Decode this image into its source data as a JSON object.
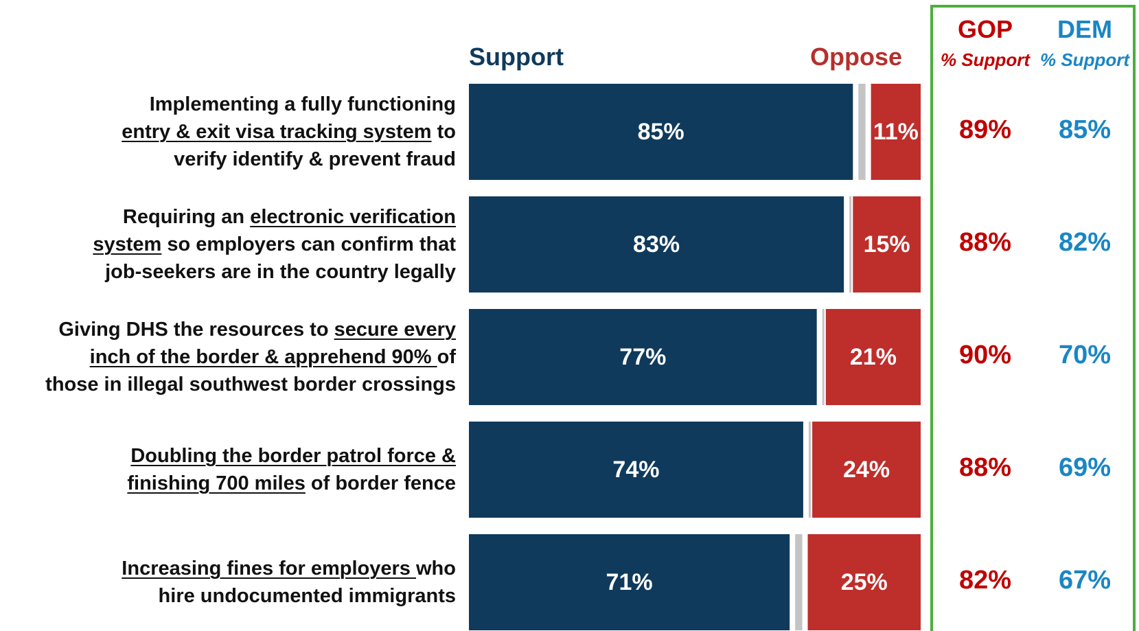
{
  "headers": {
    "support": "Support",
    "oppose": "Oppose"
  },
  "party": {
    "gop_label": "GOP",
    "dem_label": "DEM",
    "gop_sub": "% Support",
    "dem_sub": "% Support"
  },
  "colors": {
    "support": "#0f3a5c",
    "oppose": "#be2e2b",
    "neutral": "#c4c4c4",
    "gop": "#c00000",
    "dem": "#1a86c4",
    "box": "#4caf3c"
  },
  "items": [
    {
      "label_parts": [
        {
          "text": "Implementing a fully functioning",
          "u": false
        },
        {
          "br": true
        },
        {
          "text": "entry & exit visa tracking system",
          "u": true
        },
        {
          "text": " to",
          "u": false
        },
        {
          "br": true
        },
        {
          "text": "verify identify & prevent fraud",
          "u": false
        }
      ]
    },
    {
      "label_parts": [
        {
          "text": "Requiring an ",
          "u": false
        },
        {
          "text": "electronic verification",
          "u": true
        },
        {
          "br": true
        },
        {
          "text": "system",
          "u": true
        },
        {
          "text": " so employers can confirm that",
          "u": false
        },
        {
          "br": true
        },
        {
          "text": "job-seekers are in the country legally",
          "u": false
        }
      ]
    },
    {
      "label_parts": [
        {
          "text": "Giving DHS the resources to ",
          "u": false
        },
        {
          "text": "secure every",
          "u": true
        },
        {
          "br": true
        },
        {
          "text": "inch of the border & apprehend 90% ",
          "u": true
        },
        {
          "text": "of",
          "u": false
        },
        {
          "br": true
        },
        {
          "text": "those in illegal southwest border crossings",
          "u": false
        }
      ]
    },
    {
      "label_parts": [
        {
          "text": "Doubling the border patrol force &",
          "u": true
        },
        {
          "br": true
        },
        {
          "text": "finishing 700 miles",
          "u": true
        },
        {
          "text": " of border fence",
          "u": false
        }
      ]
    },
    {
      "label_parts": [
        {
          "text": "Increasing fines for employers ",
          "u": true
        },
        {
          "text": "who",
          "u": false
        },
        {
          "br": true
        },
        {
          "text": "hire undocumented immigrants",
          "u": false
        }
      ]
    }
  ],
  "chart_data": {
    "type": "bar",
    "orientation": "horizontal-stacked",
    "categories": [
      "Implementing a fully functioning entry & exit visa tracking system to verify identify & prevent fraud",
      "Requiring an electronic verification system so employers can confirm that job-seekers are in the country legally",
      "Giving DHS the resources to secure every inch of the border & apprehend 90% of those in illegal southwest border crossings",
      "Doubling the border patrol force & finishing 700 miles of border fence",
      "Increasing fines for employers who hire undocumented immigrants"
    ],
    "series": [
      {
        "name": "Support",
        "values": [
          85,
          83,
          77,
          74,
          71
        ],
        "labels": [
          "85%",
          "83%",
          "77%",
          "74%",
          "71%"
        ]
      },
      {
        "name": "Oppose",
        "values": [
          11,
          15,
          21,
          24,
          25
        ],
        "labels": [
          "11%",
          "15%",
          "21%",
          "24%",
          "25%"
        ]
      }
    ],
    "gop_support": [
      "89%",
      "88%",
      "90%",
      "88%",
      "82%"
    ],
    "dem_support": [
      "85%",
      "82%",
      "70%",
      "69%",
      "67%"
    ],
    "xlim": [
      0,
      100
    ]
  }
}
